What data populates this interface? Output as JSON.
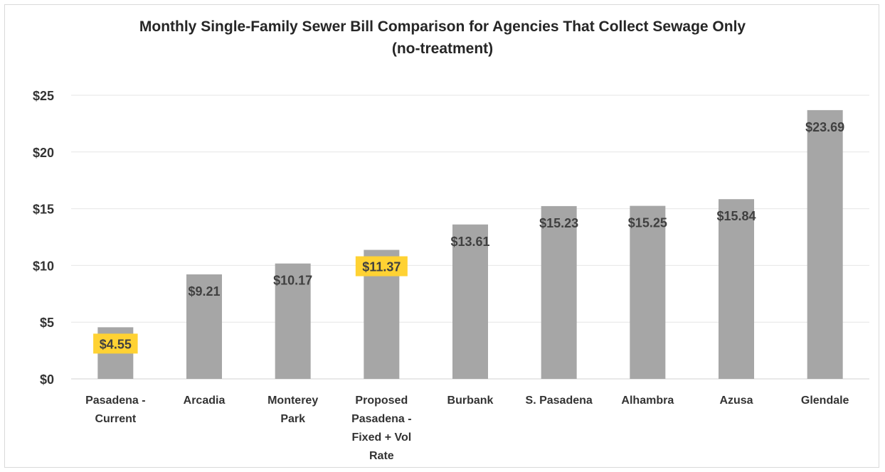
{
  "chart_data": {
    "type": "bar",
    "title": "Monthly Single-Family Sewer Bill Comparison for Agencies That Collect Sewage Only",
    "subtitle": "(no-treatment)",
    "categories": [
      [
        "Pasadena -",
        "Current"
      ],
      [
        "Arcadia"
      ],
      [
        "Monterey",
        "Park"
      ],
      [
        "Proposed",
        "Pasadena -",
        "Fixed + Vol",
        "Rate"
      ],
      [
        "Burbank"
      ],
      [
        "S. Pasadena"
      ],
      [
        "Alhambra"
      ],
      [
        "Azusa"
      ],
      [
        "Glendale"
      ]
    ],
    "values": [
      4.55,
      9.21,
      10.17,
      11.37,
      13.61,
      15.23,
      15.25,
      15.84,
      23.69
    ],
    "data_labels": [
      "$4.55",
      "$9.21",
      "$10.17",
      "$11.37",
      "$13.61",
      "$15.23",
      "$15.25",
      "$15.84",
      "$23.69"
    ],
    "highlighted": [
      true,
      false,
      false,
      true,
      false,
      false,
      false,
      false,
      false
    ],
    "ylim": [
      0,
      25
    ],
    "yticks": [
      0,
      5,
      10,
      15,
      20,
      25
    ],
    "ytick_labels": [
      "$0",
      "$5",
      "$10",
      "$15",
      "$20",
      "$25"
    ],
    "grid": true,
    "legend": "none",
    "colors": {
      "bar": "#a6a6a6",
      "highlight": "#ffd233",
      "grid": "#e6e6e6",
      "text": "#333333"
    }
  }
}
